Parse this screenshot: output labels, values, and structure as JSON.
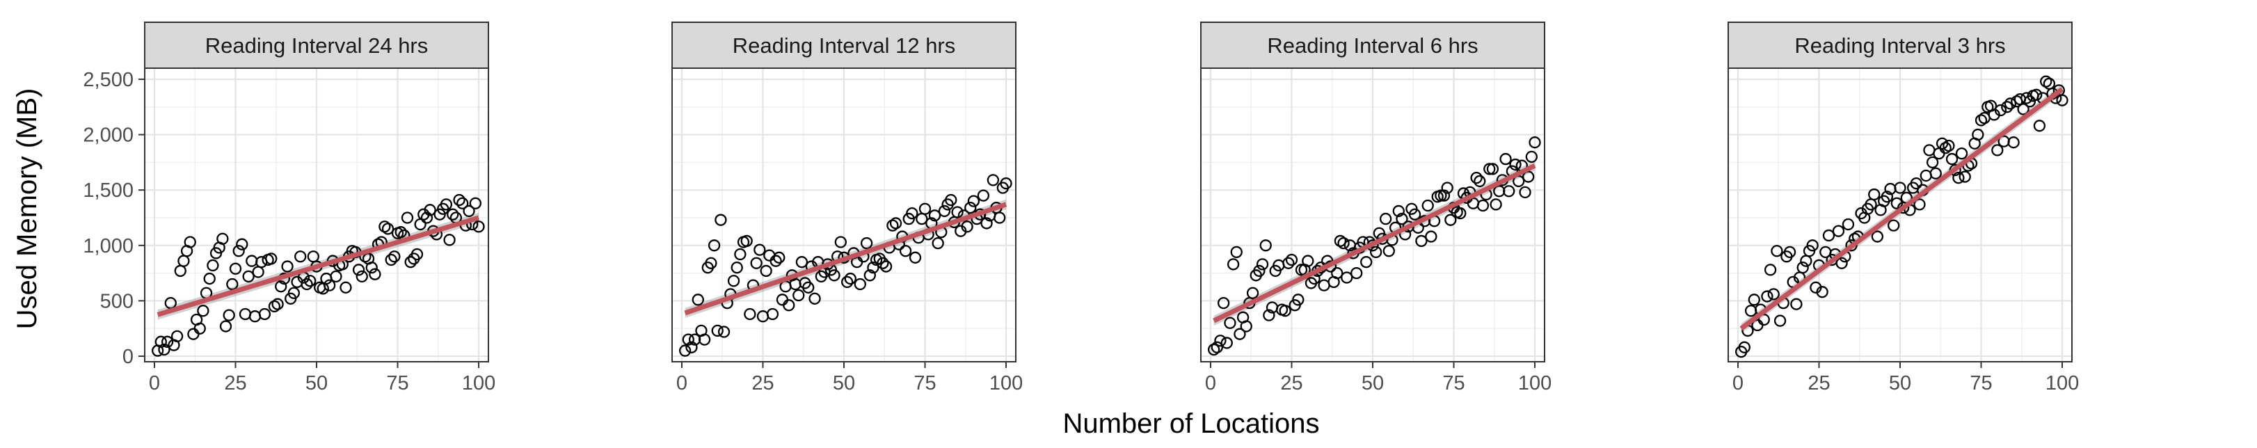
{
  "figure": {
    "xlabel": "Number of Locations",
    "ylabel": "Used Memory (MB)"
  },
  "chart_data": [
    {
      "type": "scatter",
      "title": "Reading Interval 24 hrs",
      "xlabel": "Number of Locations",
      "ylabel": "Used Memory (MB)",
      "xlim": [
        -3,
        103
      ],
      "ylim": [
        -50,
        2600
      ],
      "x_ticks": [
        0,
        25,
        50,
        75,
        100
      ],
      "x_tick_labels": [
        "0",
        "25",
        "50",
        "75",
        "100"
      ],
      "y_ticks": [
        0,
        500,
        1000,
        1500,
        2000,
        2500
      ],
      "y_tick_labels": [
        "0",
        "500",
        "1,000",
        "1,500",
        "2,000",
        "2,500"
      ],
      "grid": true,
      "trend": {
        "x": [
          1,
          100
        ],
        "y": [
          375,
          1250
        ]
      },
      "x": [
        1,
        2,
        3,
        4,
        5,
        6,
        7,
        8,
        9,
        10,
        11,
        12,
        13,
        14,
        15,
        16,
        17,
        18,
        19,
        20,
        21,
        22,
        23,
        24,
        25,
        26,
        27,
        28,
        29,
        30,
        31,
        32,
        33,
        34,
        35,
        36,
        37,
        38,
        39,
        40,
        41,
        42,
        43,
        44,
        45,
        46,
        47,
        48,
        49,
        50,
        51,
        52,
        53,
        54,
        55,
        56,
        57,
        58,
        59,
        60,
        61,
        62,
        63,
        64,
        65,
        66,
        67,
        68,
        69,
        70,
        71,
        72,
        73,
        74,
        75,
        76,
        77,
        78,
        79,
        80,
        81,
        82,
        83,
        84,
        85,
        86,
        87,
        88,
        89,
        90,
        91,
        92,
        93,
        94,
        95,
        96,
        97,
        98,
        99,
        100
      ],
      "y": [
        50,
        130,
        60,
        130,
        480,
        100,
        180,
        770,
        860,
        950,
        1030,
        200,
        330,
        250,
        410,
        570,
        700,
        820,
        930,
        980,
        1060,
        270,
        370,
        650,
        790,
        950,
        1010,
        380,
        720,
        860,
        360,
        760,
        850,
        380,
        870,
        880,
        450,
        470,
        630,
        700,
        810,
        520,
        570,
        670,
        900,
        710,
        650,
        680,
        900,
        810,
        620,
        610,
        700,
        640,
        860,
        720,
        820,
        830,
        620,
        900,
        950,
        940,
        780,
        720,
        900,
        880,
        800,
        740,
        1010,
        1030,
        1170,
        1150,
        870,
        900,
        1110,
        1120,
        1090,
        1250,
        850,
        880,
        920,
        1190,
        1280,
        1250,
        1320,
        1130,
        1100,
        1280,
        1330,
        1370,
        1050,
        1280,
        1250,
        1410,
        1380,
        1180,
        1310,
        1190,
        1380,
        1170
      ]
    },
    {
      "type": "scatter",
      "title": "Reading Interval 12 hrs",
      "xlabel": "Number of Locations",
      "ylabel": "Used Memory (MB)",
      "xlim": [
        -3,
        103
      ],
      "ylim": [
        -50,
        2600
      ],
      "x_ticks": [
        0,
        25,
        50,
        75,
        100
      ],
      "x_tick_labels": [
        "0",
        "25",
        "50",
        "75",
        "100"
      ],
      "y_ticks": [
        0,
        500,
        1000,
        1500,
        2000,
        2500
      ],
      "y_tick_labels": [
        "0",
        "500",
        "1,000",
        "1,500",
        "2,000",
        "2,500"
      ],
      "grid": true,
      "trend": {
        "x": [
          1,
          100
        ],
        "y": [
          390,
          1370
        ]
      },
      "x": [
        1,
        2,
        3,
        4,
        5,
        6,
        7,
        8,
        9,
        10,
        11,
        12,
        13,
        14,
        15,
        16,
        17,
        18,
        19,
        20,
        21,
        22,
        23,
        24,
        25,
        26,
        27,
        28,
        29,
        30,
        31,
        32,
        33,
        34,
        35,
        36,
        37,
        38,
        39,
        40,
        41,
        42,
        43,
        44,
        45,
        46,
        47,
        48,
        49,
        50,
        51,
        52,
        53,
        54,
        55,
        56,
        57,
        58,
        59,
        60,
        61,
        62,
        63,
        64,
        65,
        66,
        67,
        68,
        69,
        70,
        71,
        72,
        73,
        74,
        75,
        76,
        77,
        78,
        79,
        80,
        81,
        82,
        83,
        84,
        85,
        86,
        87,
        88,
        89,
        90,
        91,
        92,
        93,
        94,
        95,
        96,
        97,
        98,
        99,
        100
      ],
      "y": [
        50,
        150,
        80,
        150,
        510,
        230,
        150,
        800,
        840,
        1000,
        230,
        1230,
        220,
        480,
        560,
        680,
        800,
        920,
        1030,
        1040,
        380,
        640,
        840,
        960,
        360,
        770,
        910,
        380,
        860,
        890,
        510,
        630,
        460,
        730,
        650,
        550,
        850,
        660,
        620,
        810,
        520,
        850,
        720,
        760,
        830,
        780,
        730,
        900,
        1030,
        890,
        670,
        700,
        930,
        850,
        650,
        900,
        1020,
        730,
        800,
        870,
        880,
        840,
        810,
        980,
        1180,
        1200,
        1010,
        1080,
        950,
        1240,
        1290,
        890,
        1070,
        1240,
        1330,
        1100,
        1200,
        1270,
        1020,
        1120,
        1310,
        1370,
        1410,
        1210,
        1300,
        1130,
        1270,
        1170,
        1340,
        1400,
        1240,
        1280,
        1450,
        1200,
        1270,
        1590,
        1340,
        1250,
        1520,
        1560
      ]
    },
    {
      "type": "scatter",
      "title": "Reading Interval 6 hrs",
      "xlabel": "Number of Locations",
      "ylabel": "Used Memory (MB)",
      "xlim": [
        -3,
        103
      ],
      "ylim": [
        -50,
        2600
      ],
      "x_ticks": [
        0,
        25,
        50,
        75,
        100
      ],
      "x_tick_labels": [
        "0",
        "25",
        "50",
        "75",
        "100"
      ],
      "y_ticks": [
        0,
        500,
        1000,
        1500,
        2000,
        2500
      ],
      "y_tick_labels": [
        "0",
        "500",
        "1,000",
        "1,500",
        "2,000",
        "2,500"
      ],
      "grid": true,
      "trend": {
        "x": [
          1,
          100
        ],
        "y": [
          320,
          1720
        ]
      },
      "x": [
        1,
        2,
        3,
        4,
        5,
        6,
        7,
        8,
        9,
        10,
        11,
        12,
        13,
        14,
        15,
        16,
        17,
        18,
        19,
        20,
        21,
        22,
        23,
        24,
        25,
        26,
        27,
        28,
        29,
        30,
        31,
        32,
        33,
        34,
        35,
        36,
        37,
        38,
        39,
        40,
        41,
        42,
        43,
        44,
        45,
        46,
        47,
        48,
        49,
        50,
        51,
        52,
        53,
        54,
        55,
        56,
        57,
        58,
        59,
        60,
        61,
        62,
        63,
        64,
        65,
        66,
        67,
        68,
        69,
        70,
        71,
        72,
        73,
        74,
        75,
        76,
        77,
        78,
        79,
        80,
        81,
        82,
        83,
        84,
        85,
        86,
        87,
        88,
        89,
        90,
        91,
        92,
        93,
        94,
        95,
        96,
        97,
        98,
        99,
        100
      ],
      "y": [
        60,
        80,
        140,
        480,
        120,
        300,
        830,
        940,
        200,
        350,
        270,
        480,
        570,
        730,
        770,
        830,
        1000,
        370,
        440,
        770,
        820,
        420,
        410,
        840,
        870,
        460,
        510,
        780,
        780,
        860,
        660,
        700,
        770,
        800,
        640,
        860,
        810,
        670,
        750,
        1040,
        1020,
        710,
        1000,
        930,
        750,
        980,
        1030,
        850,
        1030,
        1000,
        940,
        1110,
        1060,
        1240,
        950,
        1050,
        1160,
        1310,
        1240,
        1100,
        1170,
        1330,
        1280,
        1160,
        1040,
        1220,
        1360,
        1080,
        1220,
        1440,
        1450,
        1450,
        1520,
        1230,
        1340,
        1300,
        1290,
        1470,
        1430,
        1480,
        1380,
        1610,
        1580,
        1360,
        1460,
        1690,
        1690,
        1370,
        1490,
        1590,
        1780,
        1490,
        1670,
        1730,
        1580,
        1720,
        1480,
        1620,
        1800,
        1930
      ]
    },
    {
      "type": "scatter",
      "title": "Reading Interval 3 hrs",
      "xlabel": "Number of Locations",
      "ylabel": "Used Memory (MB)",
      "xlim": [
        -3,
        103
      ],
      "ylim": [
        -50,
        2600
      ],
      "x_ticks": [
        0,
        25,
        50,
        75,
        100
      ],
      "x_tick_labels": [
        "0",
        "25",
        "50",
        "75",
        "100"
      ],
      "y_ticks": [
        0,
        500,
        1000,
        1500,
        2000,
        2500
      ],
      "y_tick_labels": [
        "0",
        "500",
        "1,000",
        "1,500",
        "2,000",
        "2,500"
      ],
      "grid": true,
      "trend": {
        "x": [
          1,
          100
        ],
        "y": [
          250,
          2410
        ]
      },
      "x": [
        1,
        2,
        3,
        4,
        5,
        6,
        7,
        8,
        9,
        10,
        11,
        12,
        13,
        14,
        15,
        16,
        17,
        18,
        19,
        20,
        21,
        22,
        23,
        24,
        25,
        26,
        27,
        28,
        29,
        30,
        31,
        32,
        33,
        34,
        35,
        36,
        37,
        38,
        39,
        40,
        41,
        42,
        43,
        44,
        45,
        46,
        47,
        48,
        49,
        50,
        51,
        52,
        53,
        54,
        55,
        56,
        57,
        58,
        59,
        60,
        61,
        62,
        63,
        64,
        65,
        66,
        67,
        68,
        69,
        70,
        71,
        72,
        73,
        74,
        75,
        76,
        77,
        78,
        79,
        80,
        81,
        82,
        83,
        84,
        85,
        86,
        87,
        88,
        89,
        90,
        91,
        92,
        93,
        94,
        95,
        96,
        97,
        98,
        99,
        100
      ],
      "y": [
        40,
        80,
        230,
        410,
        510,
        280,
        420,
        330,
        540,
        780,
        560,
        950,
        320,
        480,
        900,
        940,
        670,
        470,
        710,
        800,
        860,
        950,
        1000,
        620,
        820,
        580,
        940,
        1090,
        870,
        920,
        1130,
        840,
        900,
        1190,
        1000,
        1060,
        1080,
        1290,
        1250,
        1330,
        1370,
        1460,
        1080,
        1320,
        1400,
        1440,
        1510,
        1180,
        1380,
        1520,
        1340,
        1430,
        1320,
        1520,
        1560,
        1370,
        1500,
        1630,
        1860,
        1750,
        1650,
        1830,
        1920,
        1880,
        1900,
        1780,
        1680,
        1610,
        1830,
        1620,
        1720,
        1740,
        1920,
        2000,
        2130,
        2150,
        2250,
        2260,
        2180,
        1860,
        2220,
        1940,
        2250,
        2280,
        1930,
        2300,
        2320,
        2230,
        2330,
        2300,
        2350,
        2360,
        2080,
        2330,
        2480,
        2460,
        2370,
        2330,
        2400,
        2310
      ]
    }
  ]
}
